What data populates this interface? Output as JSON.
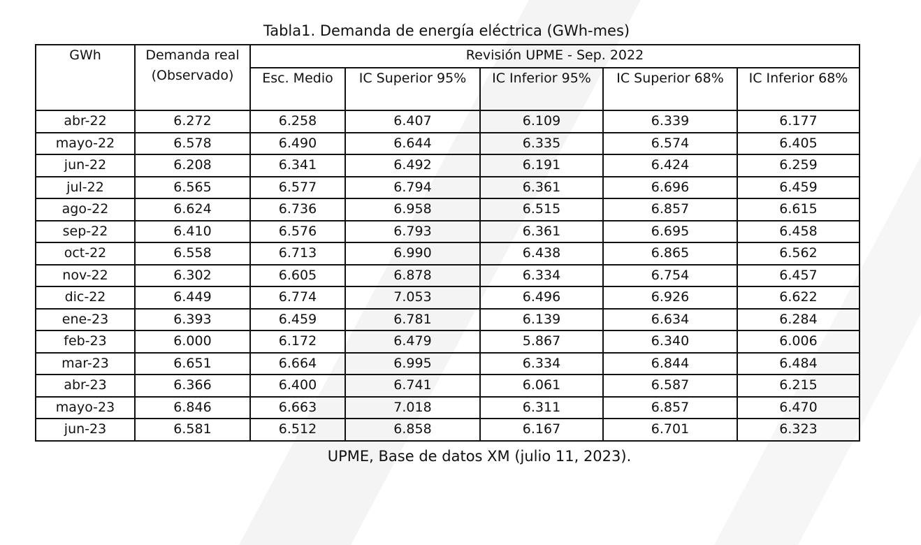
{
  "title": "Tabla1. Demanda de energía eléctrica (GWh-mes)",
  "caption": "UPME, Base de datos XM (julio 11, 2023).",
  "header": {
    "col_unit": "GWh",
    "col_real": "Demanda real (Observado)",
    "group": "Revisión UPME - Sep. 2022",
    "sub": [
      "Esc. Medio",
      "IC Superior 95%",
      "IC Inferior 95%",
      "IC Superior 68%",
      "IC Inferior 68%"
    ]
  },
  "rows": [
    [
      "abr-22",
      "6.272",
      "6.258",
      "6.407",
      "6.109",
      "6.339",
      "6.177"
    ],
    [
      "mayo-22",
      "6.578",
      "6.490",
      "6.644",
      "6.335",
      "6.574",
      "6.405"
    ],
    [
      "jun-22",
      "6.208",
      "6.341",
      "6.492",
      "6.191",
      "6.424",
      "6.259"
    ],
    [
      "jul-22",
      "6.565",
      "6.577",
      "6.794",
      "6.361",
      "6.696",
      "6.459"
    ],
    [
      "ago-22",
      "6.624",
      "6.736",
      "6.958",
      "6.515",
      "6.857",
      "6.615"
    ],
    [
      "sep-22",
      "6.410",
      "6.576",
      "6.793",
      "6.361",
      "6.695",
      "6.458"
    ],
    [
      "oct-22",
      "6.558",
      "6.713",
      "6.990",
      "6.438",
      "6.865",
      "6.562"
    ],
    [
      "nov-22",
      "6.302",
      "6.605",
      "6.878",
      "6.334",
      "6.754",
      "6.457"
    ],
    [
      "dic-22",
      "6.449",
      "6.774",
      "7.053",
      "6.496",
      "6.926",
      "6.622"
    ],
    [
      "ene-23",
      "6.393",
      "6.459",
      "6.781",
      "6.139",
      "6.634",
      "6.284"
    ],
    [
      "feb-23",
      "6.000",
      "6.172",
      "6.479",
      "5.867",
      "6.340",
      "6.006"
    ],
    [
      "mar-23",
      "6.651",
      "6.664",
      "6.995",
      "6.334",
      "6.844",
      "6.484"
    ],
    [
      "abr-23",
      "6.366",
      "6.400",
      "6.741",
      "6.061",
      "6.587",
      "6.215"
    ],
    [
      "mayo-23",
      "6.846",
      "6.663",
      "7.018",
      "6.311",
      "6.857",
      "6.470"
    ],
    [
      "jun-23",
      "6.581",
      "6.512",
      "6.858",
      "6.167",
      "6.701",
      "6.323"
    ]
  ]
}
